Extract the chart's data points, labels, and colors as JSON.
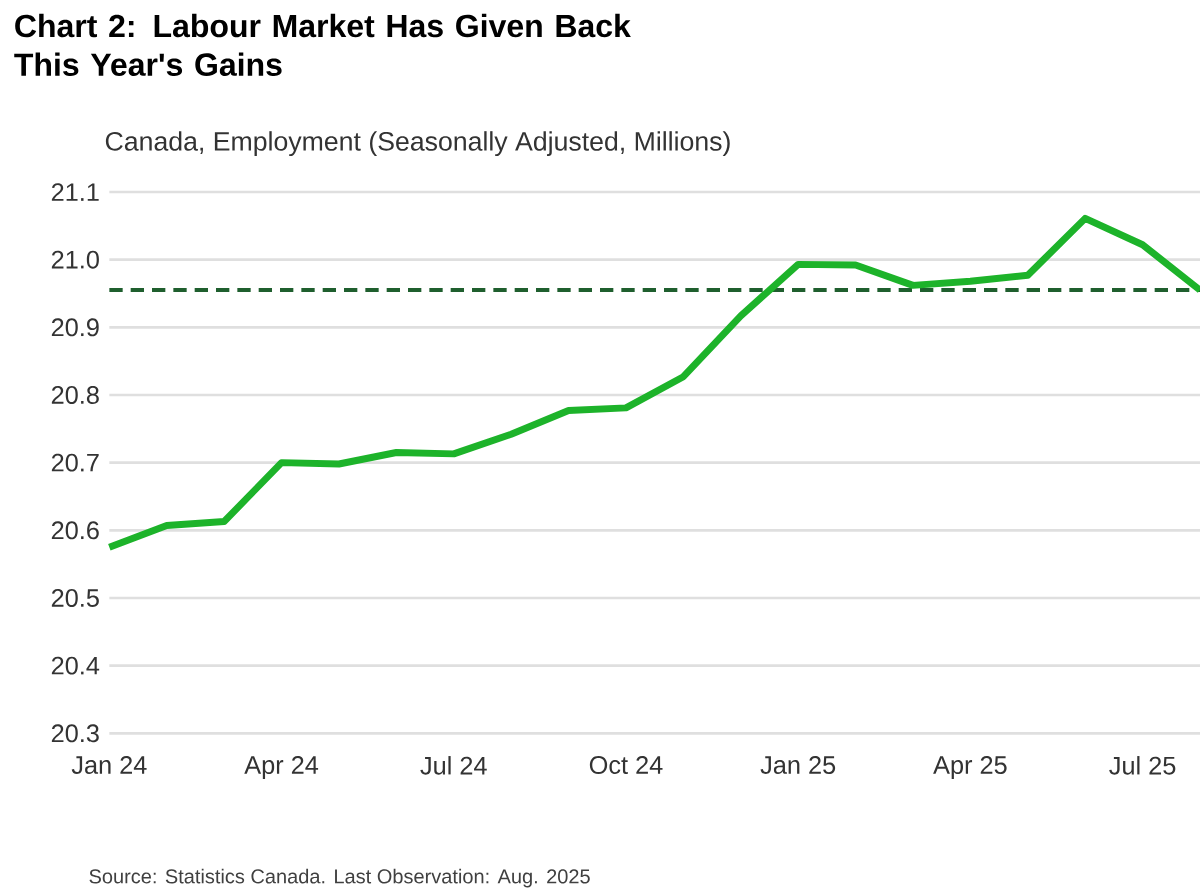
{
  "chart_data": {
    "type": "line",
    "title": "Chart 2: Labour Market Has Given Back This Year's Gains",
    "subtitle": "Canada, Employment (Seasonally Adjusted, Millions)",
    "x": [
      "2024-01",
      "2024-02",
      "2024-03",
      "2024-04",
      "2024-05",
      "2024-06",
      "2024-07",
      "2024-08",
      "2024-09",
      "2024-10",
      "2024-11",
      "2024-12",
      "2025-01",
      "2025-02",
      "2025-03",
      "2025-04",
      "2025-05",
      "2025-06",
      "2025-07",
      "2025-08"
    ],
    "series": [
      {
        "color": "#1db32a",
        "values": [
          20.575,
          20.607,
          20.613,
          20.7,
          20.698,
          20.715,
          20.713,
          20.742,
          20.777,
          20.781,
          20.827,
          20.917,
          20.993,
          20.992,
          20.962,
          20.968,
          20.977,
          21.061,
          21.022,
          20.955
        ]
      }
    ],
    "xlim": [
      "2024-01",
      "2025-08"
    ],
    "xticks": [
      {
        "value": "2024-01",
        "label": "Jan 24"
      },
      {
        "value": "2024-04",
        "label": "Apr 24"
      },
      {
        "value": "2024-07",
        "label": "Jul 24"
      },
      {
        "value": "2024-10",
        "label": "Oct 24"
      },
      {
        "value": "2025-01",
        "label": "Jan 25"
      },
      {
        "value": "2025-04",
        "label": "Apr 25"
      },
      {
        "value": "2025-07",
        "label": "Jul 25"
      }
    ],
    "ylim": [
      20.3,
      21.1
    ],
    "yticks": [
      20.3,
      20.4,
      20.5,
      20.6,
      20.7,
      20.8,
      20.9,
      {
        "value": 21.0,
        "label": "21.0"
      },
      21.1
    ],
    "grid": "y",
    "ref_lines": [
      {
        "axis": "y",
        "value": 20.955,
        "color": "#1f5f2e",
        "line_style": "dashed"
      }
    ],
    "annotations": [
      "Source: Statistics Canada. Last Observation: Aug. 2025"
    ]
  }
}
